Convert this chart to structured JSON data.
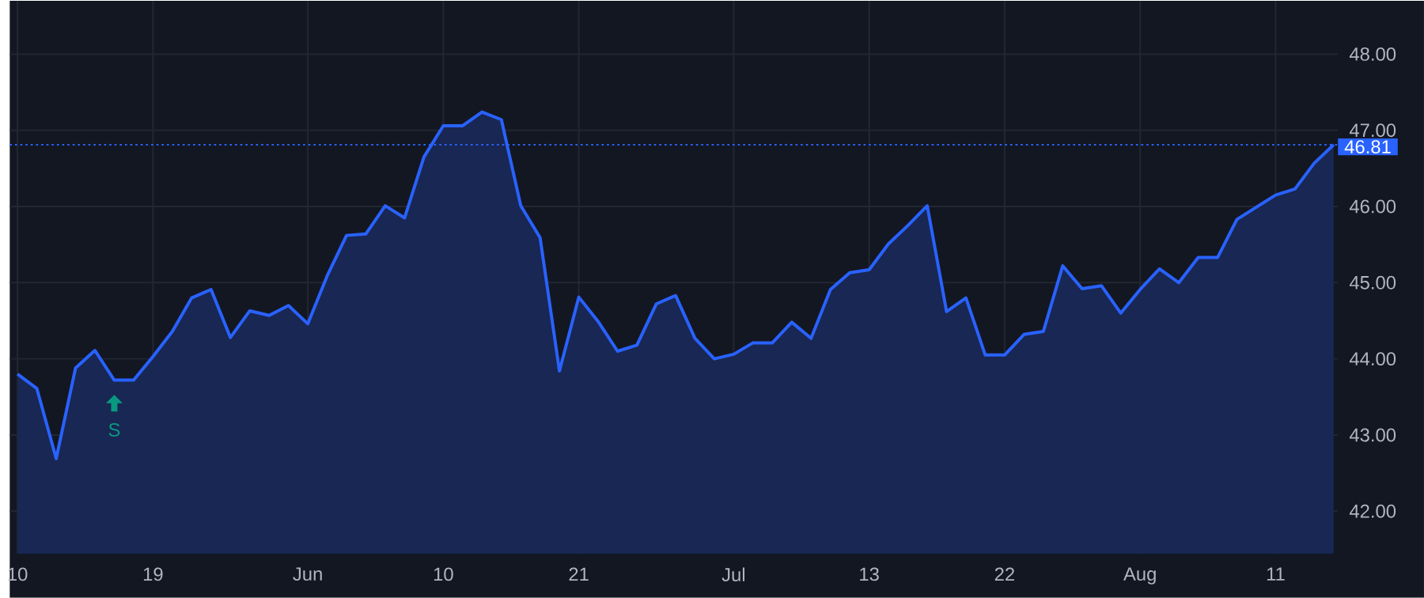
{
  "chart_data": {
    "type": "area",
    "color": "#2962ff",
    "categories": [
      "10",
      null,
      null,
      null,
      null,
      null,
      null,
      "19",
      null,
      null,
      null,
      null,
      null,
      null,
      null,
      "Jun",
      null,
      null,
      null,
      null,
      null,
      null,
      "10",
      null,
      null,
      null,
      null,
      null,
      null,
      "21",
      null,
      null,
      null,
      null,
      null,
      null,
      null,
      "Jul",
      null,
      null,
      null,
      null,
      null,
      null,
      "13",
      null,
      null,
      null,
      null,
      null,
      null,
      "22",
      null,
      null,
      null,
      null,
      null,
      null,
      "Aug",
      null,
      null,
      null,
      null,
      null,
      null,
      "11",
      null,
      null,
      null
    ],
    "values": [
      43.8,
      43.61,
      42.69,
      43.88,
      44.11,
      43.72,
      43.72,
      44.03,
      44.36,
      44.8,
      44.91,
      44.28,
      44.63,
      44.57,
      44.7,
      44.46,
      45.09,
      45.62,
      45.64,
      46.01,
      45.85,
      46.65,
      47.06,
      47.06,
      47.24,
      47.14,
      46.01,
      45.59,
      43.84,
      44.81,
      44.49,
      44.1,
      44.18,
      44.72,
      44.83,
      44.27,
      44.0,
      44.06,
      44.21,
      44.21,
      44.48,
      44.27,
      44.91,
      45.13,
      45.17,
      45.51,
      45.75,
      46.01,
      44.62,
      44.8,
      44.05,
      44.05,
      44.32,
      44.36,
      45.22,
      44.92,
      44.96,
      44.6,
      44.91,
      45.18,
      45.0,
      45.33,
      45.33,
      45.83,
      45.99,
      46.15,
      46.23,
      46.57,
      46.81
    ],
    "ylim": [
      41.44,
      48.7
    ],
    "yticks": [
      {
        "value": 42,
        "label": "42.00"
      },
      {
        "value": 43,
        "label": "43.00"
      },
      {
        "value": 44,
        "label": "44.00"
      },
      {
        "value": 45,
        "label": "45.00"
      },
      {
        "value": 46,
        "label": "46.00"
      },
      {
        "value": 47,
        "label": "47.00"
      },
      {
        "value": 48,
        "label": "48.00"
      }
    ],
    "ref_lines": [
      {
        "axis": "y",
        "value": 46.81,
        "label": "46.81",
        "color": "#2962ff",
        "line_style": "dotted"
      }
    ],
    "annotations": [
      {
        "text": "S",
        "y": 43.72
      }
    ],
    "grid": true
  }
}
